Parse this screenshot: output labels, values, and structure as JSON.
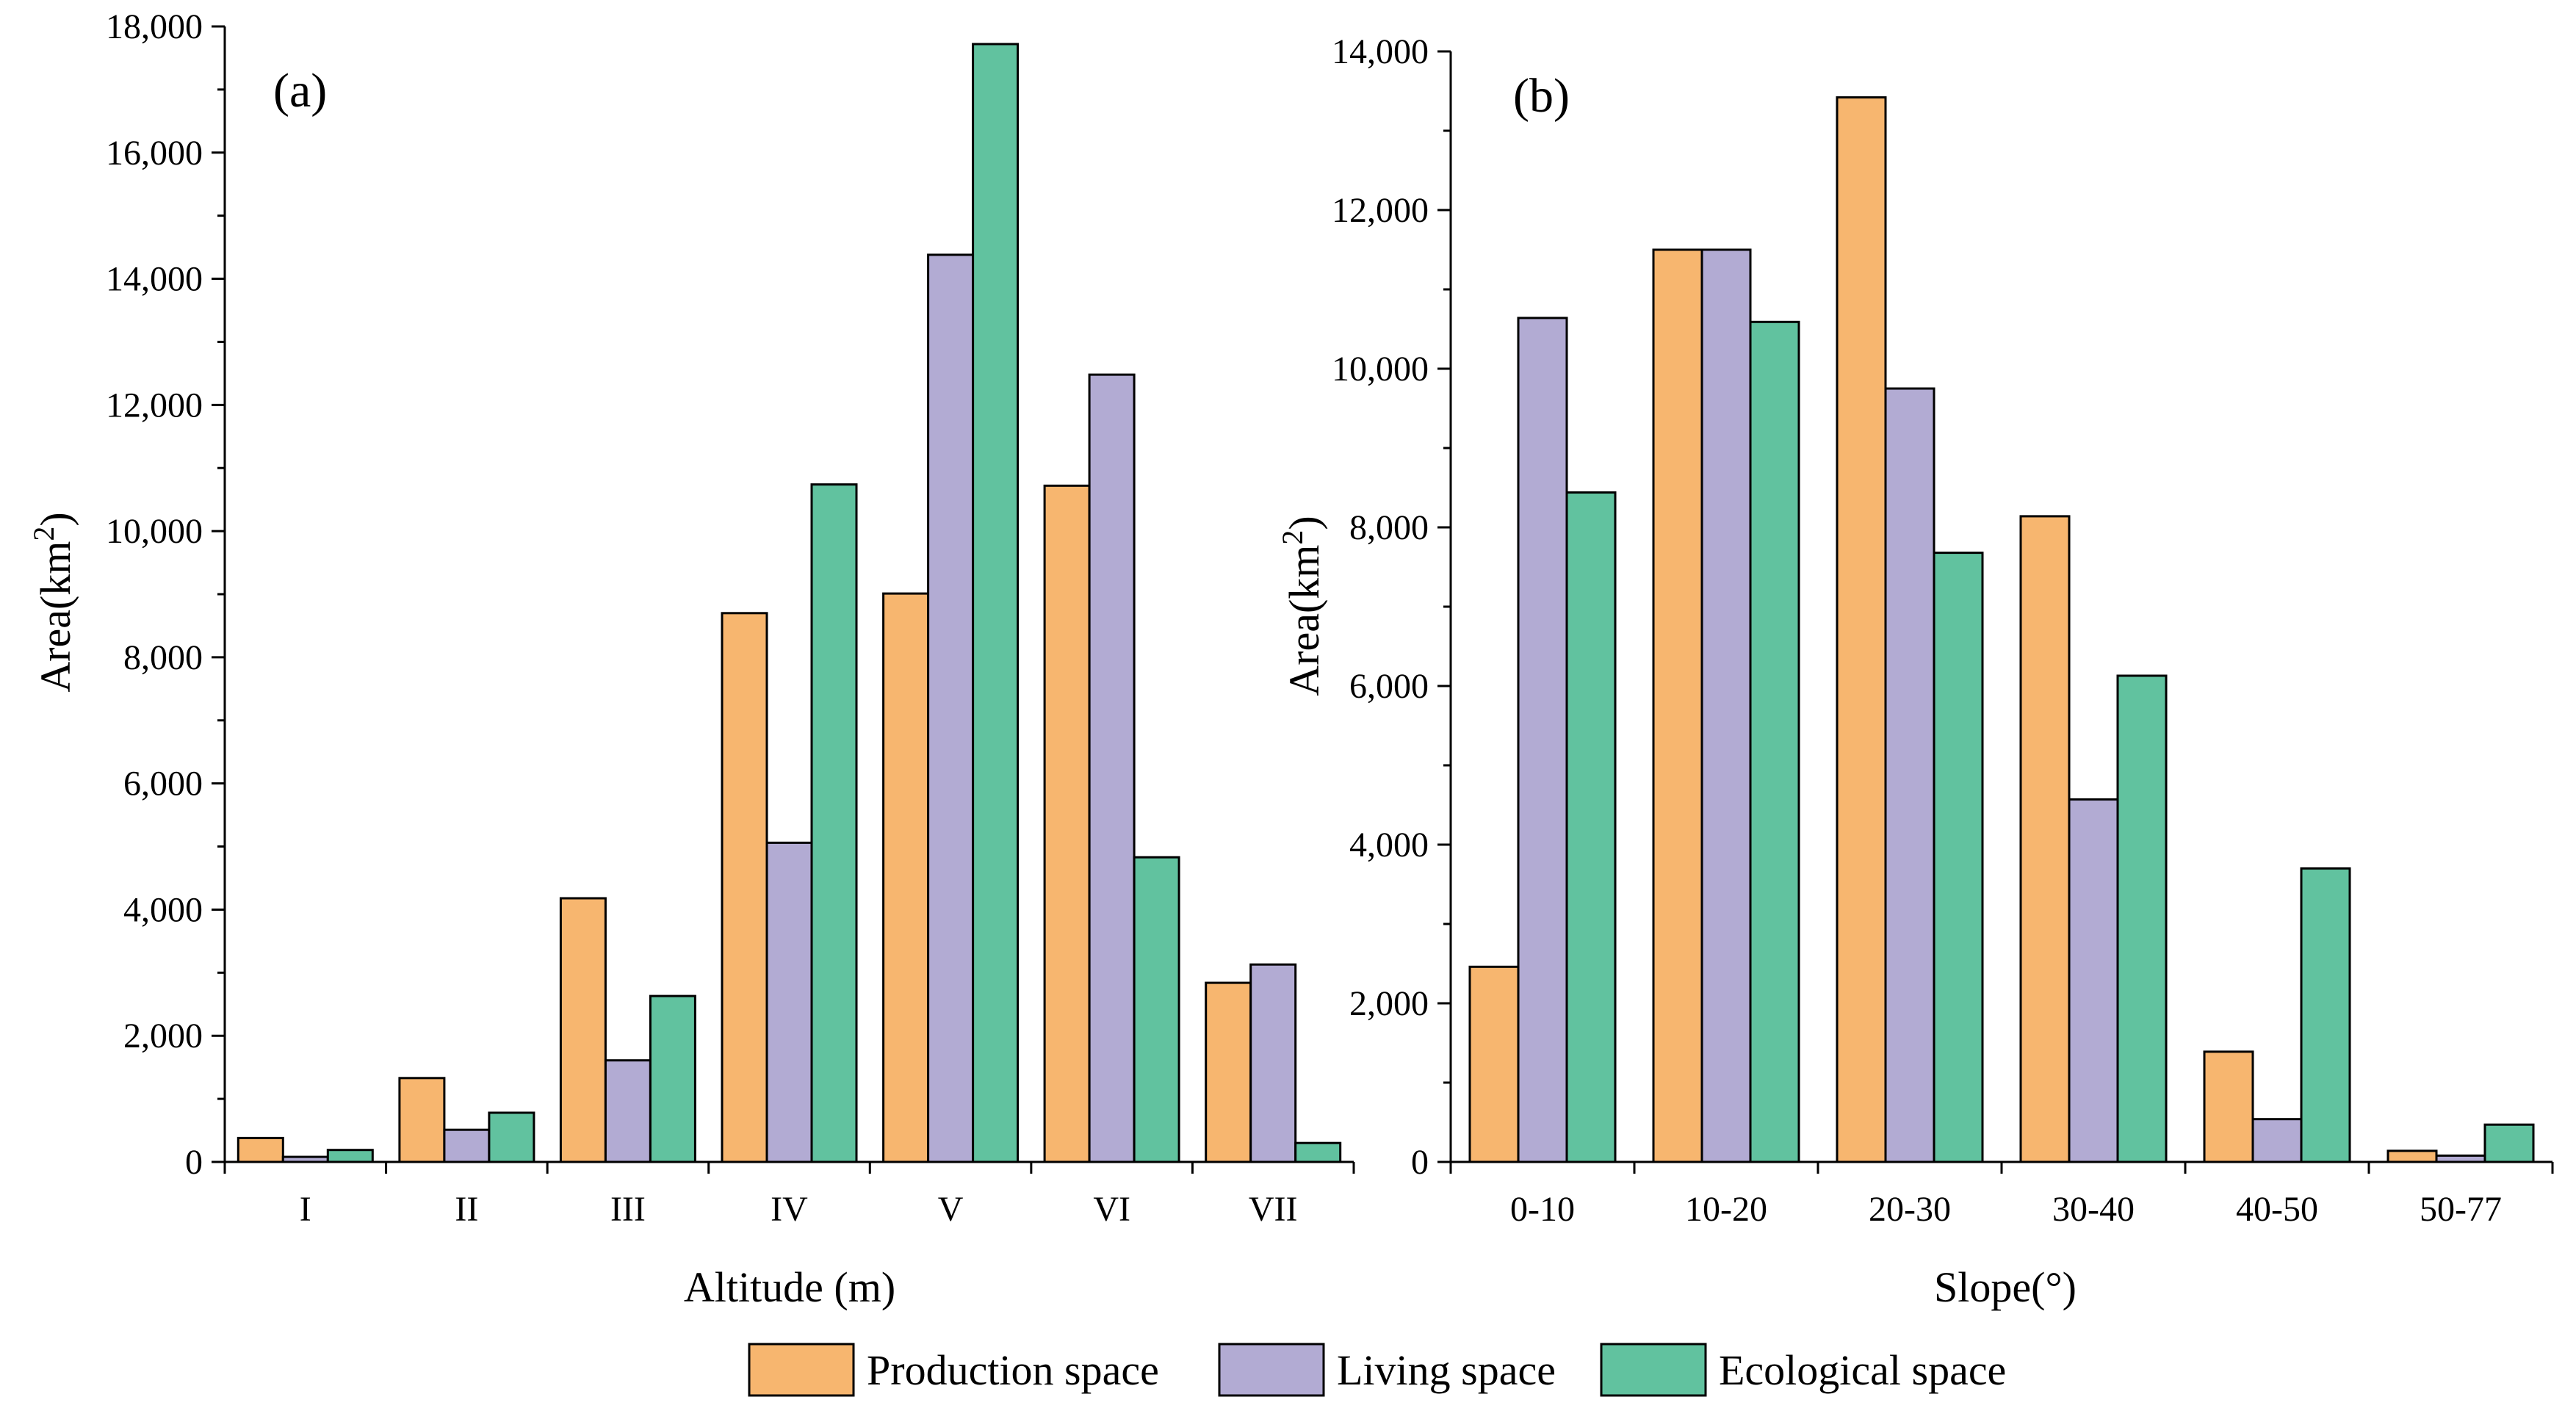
{
  "colors": {
    "production": "#f7b66f",
    "living": "#b2abd3",
    "ecological": "#61c29f",
    "stroke": "#000000"
  },
  "legend": {
    "items": [
      {
        "key": "production",
        "label": "Production space"
      },
      {
        "key": "living",
        "label": "Living space"
      },
      {
        "key": "ecological",
        "label": "Ecological space"
      }
    ]
  },
  "chart_data": [
    {
      "type": "bar",
      "panel_label": "(a)",
      "title": "",
      "xlabel": "Altitude (m)",
      "ylabel_main": "Area(km",
      "ylabel_sup": "2",
      "ylabel_close": ")",
      "ylim": [
        0,
        18000
      ],
      "yticks": [
        0,
        2000,
        4000,
        6000,
        8000,
        10000,
        12000,
        14000,
        16000,
        18000
      ],
      "ytick_labels": [
        "0",
        "2,000",
        "4,000",
        "6,000",
        "8,000",
        "10,000",
        "12,000",
        "14,000",
        "16,000",
        "18,000"
      ],
      "categories": [
        "I",
        "II",
        "III",
        "IV",
        "V",
        "VI",
        "VII"
      ],
      "series": [
        {
          "name": "Production space",
          "key": "production",
          "values": [
            380,
            1330,
            4180,
            8700,
            9010,
            10720,
            2840
          ]
        },
        {
          "name": "Living space",
          "key": "living",
          "values": [
            80,
            510,
            1610,
            5060,
            14380,
            12480,
            3130
          ]
        },
        {
          "name": "Ecological space",
          "key": "ecological",
          "values": [
            190,
            780,
            2630,
            10740,
            17720,
            4830,
            300
          ]
        }
      ]
    },
    {
      "type": "bar",
      "panel_label": "(b)",
      "title": "",
      "xlabel": "Slope(°)",
      "ylabel_main": "Area(km",
      "ylabel_sup": "2",
      "ylabel_close": ")",
      "ylim": [
        0,
        14000
      ],
      "yticks": [
        0,
        2000,
        4000,
        6000,
        8000,
        10000,
        12000,
        14000
      ],
      "ytick_labels": [
        "0",
        "2,000",
        "4,000",
        "6,000",
        "8,000",
        "10,000",
        "12,000",
        "14,000"
      ],
      "categories": [
        "0-10",
        "10-20",
        "20-30",
        "30-40",
        "40-50",
        "50-77"
      ],
      "series": [
        {
          "name": "Production space",
          "key": "production",
          "values": [
            2460,
            11500,
            13420,
            8140,
            1390,
            140
          ]
        },
        {
          "name": "Living space",
          "key": "living",
          "values": [
            10640,
            11500,
            9750,
            4570,
            540,
            80
          ]
        },
        {
          "name": "Ecological space",
          "key": "ecological",
          "values": [
            8440,
            10590,
            7680,
            6130,
            3700,
            470
          ]
        }
      ]
    }
  ]
}
